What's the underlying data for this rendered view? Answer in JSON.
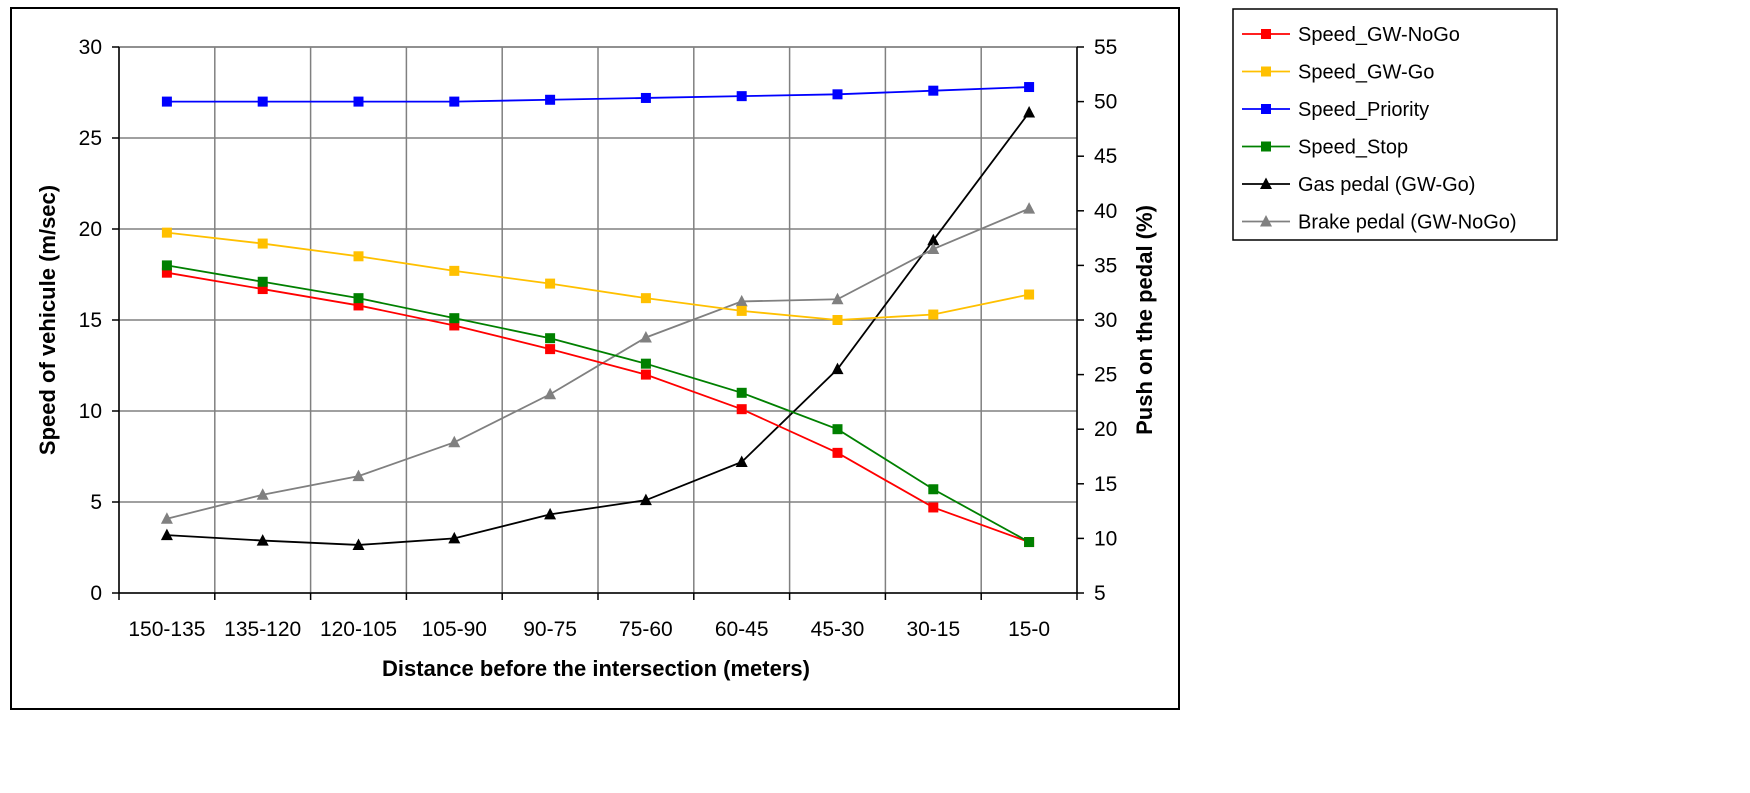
{
  "chart_data": {
    "type": "line",
    "title": "",
    "xlabel": "Distance before the intersection (meters)",
    "ylabel": "Speed of vehicule (m/sec)",
    "y2label": "Push on the pedal (%)",
    "categories": [
      "150-135",
      "135-120",
      "120-105",
      "105-90",
      "90-75",
      "75-60",
      "60-45",
      "45-30",
      "30-15",
      "15-0"
    ],
    "ylim": [
      0,
      30
    ],
    "yticks": [
      0,
      5,
      10,
      15,
      20,
      25,
      30
    ],
    "y2lim": [
      5,
      55
    ],
    "y2ticks": [
      5,
      10,
      15,
      20,
      25,
      30,
      35,
      40,
      45,
      50,
      55
    ],
    "grid": true,
    "legend_position": "right",
    "series": [
      {
        "name": "Speed_GW-NoGo",
        "axis": "left",
        "marker": "square",
        "color": "#ff0000",
        "values": [
          17.6,
          16.7,
          15.8,
          14.7,
          13.4,
          12.0,
          10.1,
          7.7,
          4.7,
          2.8
        ]
      },
      {
        "name": "Speed_GW-Go",
        "axis": "left",
        "marker": "square",
        "color": "#ffc000",
        "values": [
          19.8,
          19.2,
          18.5,
          17.7,
          17.0,
          16.2,
          15.5,
          15.0,
          15.3,
          16.4
        ]
      },
      {
        "name": "Speed_Priority",
        "axis": "left",
        "marker": "square",
        "color": "#0000ff",
        "values": [
          27.0,
          27.0,
          27.0,
          27.0,
          27.1,
          27.2,
          27.3,
          27.4,
          27.6,
          27.8
        ]
      },
      {
        "name": "Speed_Stop",
        "axis": "left",
        "marker": "square",
        "color": "#008000",
        "values": [
          18.0,
          17.1,
          16.2,
          15.1,
          14.0,
          12.6,
          11.0,
          9.0,
          5.7,
          2.8
        ]
      },
      {
        "name": "Gas pedal (GW-Go)",
        "axis": "right",
        "marker": "triangle",
        "color": "#000000",
        "values": [
          10.3,
          9.8,
          9.4,
          10.0,
          12.2,
          13.5,
          17.0,
          25.5,
          37.3,
          49.0
        ]
      },
      {
        "name": "Brake pedal (GW-NoGo)",
        "axis": "right",
        "marker": "triangle",
        "color": "#808080",
        "values": [
          11.8,
          14.0,
          15.7,
          18.8,
          23.2,
          28.4,
          31.7,
          31.9,
          36.5,
          40.2
        ]
      }
    ]
  }
}
